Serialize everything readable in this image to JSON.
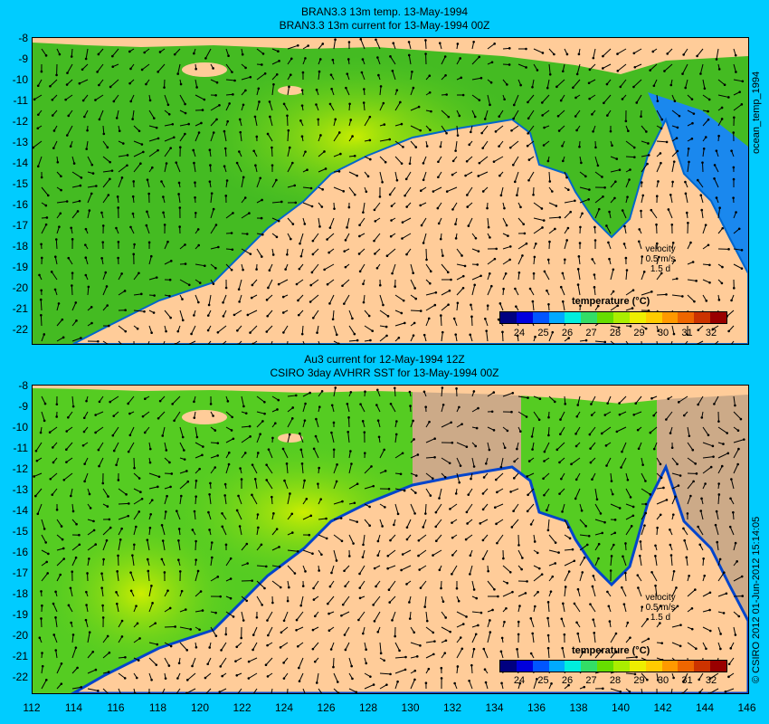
{
  "top_panel": {
    "title_line1": "BRAN3.3 13m temp. 13-May-1994",
    "title_line2": "BRAN3.3 13m current for 13-May-1994 00Z",
    "side_label": "ocean_temp_1994"
  },
  "bottom_panel": {
    "title_line1": "Au3 current for 12-May-1994 12Z",
    "title_line2": "CSIRO 3day AVHRR SST for 13-May-1994 00Z",
    "side_label": "© CSIRO 2012  01-Jun-2012 15:14:05"
  },
  "velocity_legend": {
    "label": "velocity",
    "speed": "0.5 m/s",
    "duration": "1.5 d"
  },
  "colorbar": {
    "title": "temperature (°C)",
    "ticks": [
      "24",
      "25",
      "26",
      "27",
      "28",
      "29",
      "30",
      "31",
      "32"
    ],
    "colors": [
      "#000080",
      "#0000dd",
      "#0055ff",
      "#00aaff",
      "#00eedd",
      "#33dd66",
      "#66dd00",
      "#aaee00",
      "#eeee00",
      "#ffcc00",
      "#ff9900",
      "#ee6600",
      "#cc3300",
      "#990000"
    ]
  },
  "y_axis_labels": [
    "-8",
    "-9",
    "-10",
    "-11",
    "-12",
    "-13",
    "-14",
    "-15",
    "-16",
    "-17",
    "-18",
    "-19",
    "-20",
    "-21",
    "-22"
  ],
  "x_axis_labels": [
    "112",
    "114",
    "116",
    "118",
    "120",
    "122",
    "124",
    "126",
    "128",
    "130",
    "132",
    "134",
    "136",
    "138",
    "140",
    "142",
    "144",
    "146"
  ],
  "colors": {
    "background": "#00ccff",
    "land": "#ffcc99",
    "ocean_green": "#55cc22",
    "warm_yellow": "#ccee00",
    "cold_blue": "#0044cc",
    "no_data": "#ccaa88"
  }
}
